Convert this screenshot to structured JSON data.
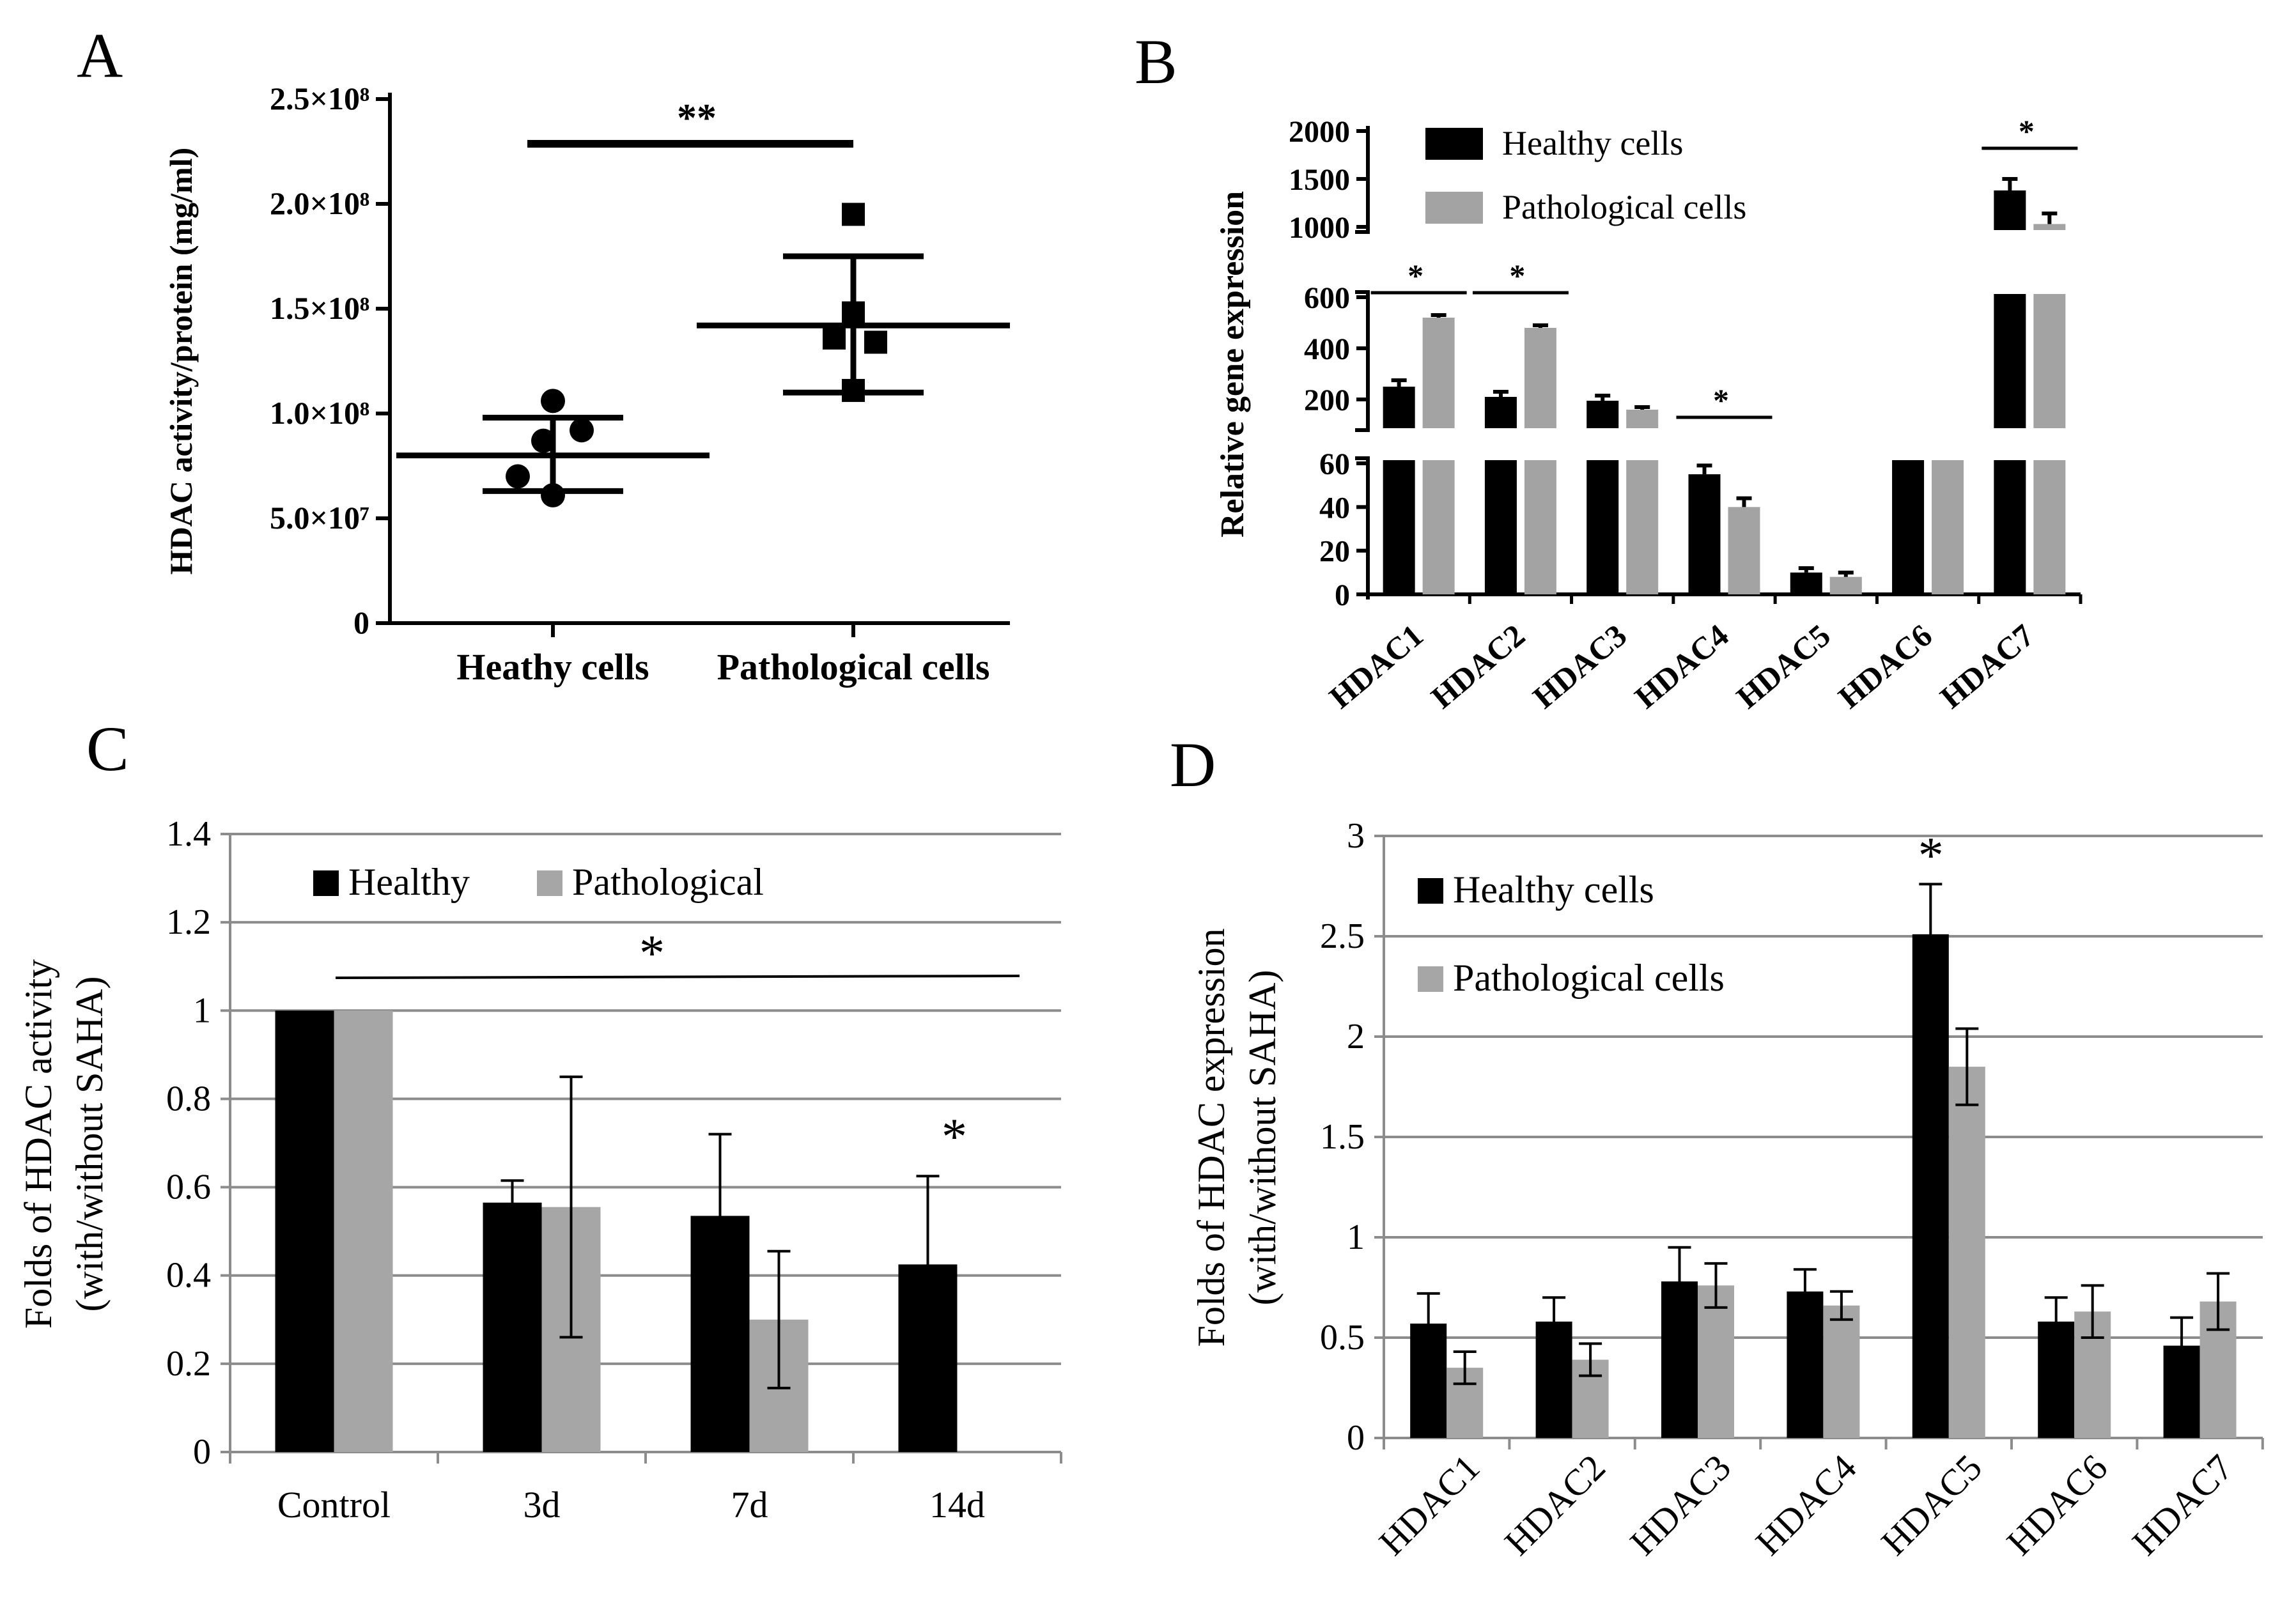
{
  "panel_labels": {
    "a": "A",
    "b": "B",
    "c": "C",
    "d": "D"
  },
  "chart_data": [
    {
      "id": "A",
      "type": "scatter",
      "ylabel": "HDAC activity/protein (mg/ml)",
      "categories": [
        "Heathy cells",
        "Pathological cells"
      ],
      "ylim": [
        0,
        250000000
      ],
      "yticks": [
        {
          "value": 0,
          "label": "0"
        },
        {
          "value": 50000000,
          "label": "5.0×10⁷"
        },
        {
          "value": 100000000,
          "label": "1.0×10⁸"
        },
        {
          "value": 150000000,
          "label": "1.5×10⁸"
        },
        {
          "value": 200000000,
          "label": "2.0×10⁸"
        },
        {
          "value": 250000000,
          "label": "2.5×10⁸"
        }
      ],
      "series": [
        {
          "name": "Heathy cells",
          "marker": "circle",
          "points": [
            106000000,
            92000000,
            87000000,
            70000000,
            61000000
          ],
          "mean": 80000000,
          "sd_low": 63000000,
          "sd_high": 98000000
        },
        {
          "name": "Pathological cells",
          "marker": "square",
          "points": [
            195000000,
            148000000,
            136000000,
            134000000,
            111000000
          ],
          "mean": 142000000,
          "sd_low": 110000000,
          "sd_high": 175000000
        }
      ],
      "significance": "**"
    },
    {
      "id": "B",
      "type": "bar",
      "ylabel": "Relative gene expression",
      "categories": [
        "HDAC1",
        "HDAC2",
        "HDAC3",
        "HDAC4",
        "HDAC5",
        "HDAC6",
        "HDAC7"
      ],
      "legend": [
        "Healthy cells",
        "Pathological cells"
      ],
      "series": [
        {
          "name": "Healthy cells",
          "color": "#000000",
          "values": [
            250,
            210,
            195,
            55,
            10,
            80,
            1380
          ],
          "errors": [
            25,
            20,
            20,
            4,
            2,
            8,
            120
          ]
        },
        {
          "name": "Pathological cells",
          "color": "#a3a3a3",
          "values": [
            520,
            480,
            160,
            40,
            8,
            85,
            1030
          ],
          "errors": [
            10,
            10,
            10,
            4,
            2,
            8,
            110
          ]
        }
      ],
      "broken_axis": [
        {
          "range": [
            0,
            60
          ],
          "ticks": [
            "0",
            "20",
            "40",
            "60"
          ]
        },
        {
          "range": [
            60,
            600
          ],
          "ticks": [
            "200",
            "400",
            "600"
          ]
        },
        {
          "range": [
            600,
            2000
          ],
          "ticks": [
            "1000",
            "1500",
            "2000"
          ]
        }
      ],
      "significance": [
        "*",
        "*",
        "*",
        "*"
      ]
    },
    {
      "id": "C",
      "type": "bar",
      "ylabel_lines": [
        "Folds of HDAC activity",
        "(with/without SAHA)"
      ],
      "categories": [
        "Control",
        "3d",
        "7d",
        "14d"
      ],
      "legend": [
        "Healthy",
        "Pathological"
      ],
      "ylim": [
        0,
        1.4
      ],
      "yticks": [
        "0",
        "0.2",
        "0.4",
        "0.6",
        "0.8",
        "1",
        "1.2",
        "1.4"
      ],
      "series": [
        {
          "name": "Healthy",
          "color": "#000000",
          "values": [
            1.0,
            0.565,
            0.535,
            0.425
          ],
          "errors": [
            0,
            0.05,
            0.185,
            0.2
          ]
        },
        {
          "name": "Pathological",
          "color": "#a6a6a6",
          "values": [
            1.0,
            0.555,
            0.3,
            null
          ],
          "errors": [
            0,
            0.295,
            0.155,
            0
          ]
        }
      ],
      "significance": [
        "*",
        "*"
      ]
    },
    {
      "id": "D",
      "type": "bar",
      "ylabel_lines": [
        "Folds of HDAC expression",
        "(with/without SAHA)"
      ],
      "categories": [
        "HDAC1",
        "HDAC2",
        "HDAC3",
        "HDAC4",
        "HDAC5",
        "HDAC6",
        "HDAC7"
      ],
      "legend": [
        "Healthy cells",
        "Pathological cells"
      ],
      "ylim": [
        0,
        3
      ],
      "yticks": [
        "0",
        "0.5",
        "1",
        "1.5",
        "2",
        "2.5",
        "3"
      ],
      "series": [
        {
          "name": "Healthy cells",
          "color": "#000000",
          "values": [
            0.57,
            0.58,
            0.78,
            0.73,
            2.51,
            0.58,
            0.46
          ],
          "errors": [
            0.15,
            0.12,
            0.17,
            0.11,
            0.25,
            0.12,
            0.14
          ]
        },
        {
          "name": "Pathological cells",
          "color": "#a6a6a6",
          "values": [
            0.35,
            0.39,
            0.76,
            0.66,
            1.85,
            0.63,
            0.68
          ],
          "errors": [
            0.08,
            0.08,
            0.11,
            0.07,
            0.19,
            0.13,
            0.14
          ]
        }
      ],
      "significance": "*"
    }
  ]
}
